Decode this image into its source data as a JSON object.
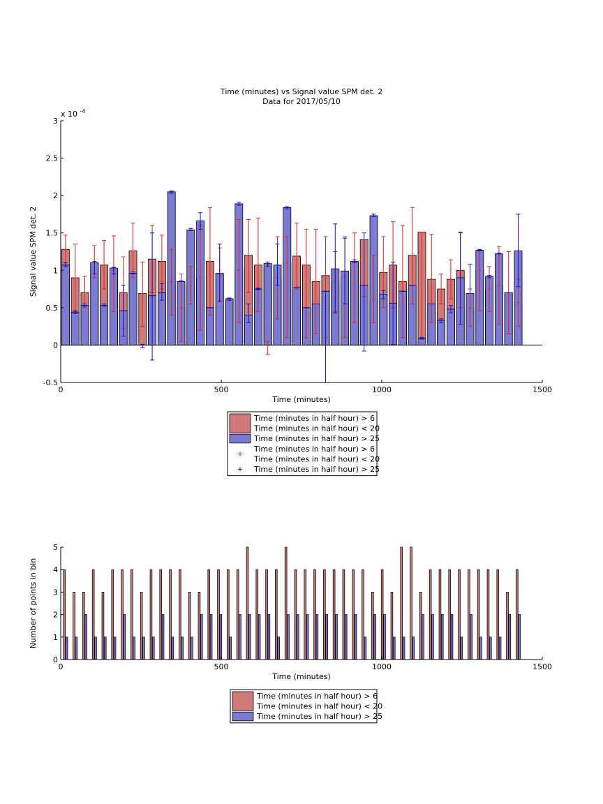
{
  "figure": {
    "title_lines": [
      "Time (minutes) vs Signal value SPM det. 2",
      "Data for 2017/05/10"
    ]
  },
  "chart_data": [
    {
      "type": "bar",
      "xlabel": "Time (minutes)",
      "ylabel": "Signal value SPM det. 2",
      "y_exponent_label": "x 10",
      "y_exponent": "-4",
      "xlim": [
        0,
        1500
      ],
      "ylim": [
        -0.5,
        3
      ],
      "xticks": [
        "0",
        "500",
        "1000",
        "1500"
      ],
      "yticks": [
        "-0.5",
        "0",
        "0.5",
        "1",
        "1.5",
        "2",
        "2.5",
        "3"
      ],
      "grid": false,
      "legend_position": "below",
      "colors": {
        "red_bar": "#d07a7a",
        "blue_bar": "#7b7bd3",
        "red_err": "#e02020",
        "blue_err": "#1010d0"
      },
      "series": [
        {
          "name": "Time (minutes in half hour) > 6\nTime (minutes in half hour) < 20",
          "color": "#d07a7a",
          "x": [
            15,
            45,
            75,
            105,
            135,
            165,
            195,
            225,
            255,
            285,
            315,
            345,
            375,
            405,
            435,
            465,
            495,
            525,
            555,
            585,
            615,
            645,
            675,
            705,
            735,
            765,
            795,
            825,
            855,
            885,
            915,
            945,
            975,
            1005,
            1035,
            1065,
            1095,
            1125,
            1155,
            1185,
            1215,
            1245,
            1275,
            1305,
            1335,
            1365,
            1395,
            1425
          ],
          "values": [
            1.28,
            0.9,
            0.7,
            1.1,
            1.07,
            1.0,
            0.7,
            1.26,
            0.69,
            1.15,
            1.12,
            0.85,
            0.5,
            0.8,
            0.9,
            1.12,
            0.95,
            0.6,
            1.0,
            1.2,
            1.07,
            1.07,
            0.9,
            1.1,
            1.19,
            1.07,
            0.85,
            0.93,
            0.85,
            0.92,
            1.1,
            1.41,
            0.6,
            0.97,
            1.07,
            0.85,
            1.2,
            1.51,
            0.88,
            0.75,
            0.88,
            1.0,
            0.5,
            1.0,
            0.75,
            0.8,
            0.7,
            0.57
          ],
          "err_low": [
            1.1,
            0.45,
            0.5,
            0.9,
            0.75,
            0.45,
            0.22,
            0.9,
            0.25,
            0.7,
            0.75,
            0.4,
            0.05,
            0.55,
            0.2,
            0.4,
            0.6,
            0.6,
            0.3,
            0.7,
            0.45,
            -0.12,
            0.35,
            0.1,
            0.75,
            0.1,
            0.15,
            0.1,
            0.45,
            0.1,
            0.3,
            0.65,
            0.3,
            0.5,
            0.5,
            0.1,
            0.55,
            0.1,
            0.3,
            0.55,
            0.62,
            0.5,
            0.25,
            0.46,
            0.45,
            0.28,
            0.15,
            0.25
          ],
          "err_high": [
            1.47,
            1.35,
            0.92,
            1.33,
            1.4,
            1.46,
            1.18,
            1.63,
            1.11,
            1.6,
            1.47,
            1.28,
            0.95,
            1.05,
            1.6,
            1.84,
            1.3,
            0.6,
            1.68,
            1.68,
            1.7,
            0.05,
            1.45,
            1.45,
            1.63,
            1.55,
            1.55,
            1.45,
            1.25,
            1.45,
            1.5,
            1.41,
            1.2,
            1.45,
            1.65,
            1.6,
            1.84,
            1.51,
            1.48,
            0.95,
            1.14,
            1.5,
            0.75,
            1.26,
            1.05,
            1.32,
            1.25,
            0.88
          ]
        },
        {
          "name": "Time (minutes in half hour) > 25",
          "color": "#7b7bd3",
          "x": [
            15,
            45,
            75,
            105,
            135,
            165,
            195,
            225,
            255,
            285,
            315,
            345,
            375,
            405,
            435,
            465,
            495,
            525,
            555,
            585,
            615,
            645,
            675,
            705,
            735,
            765,
            795,
            825,
            855,
            885,
            915,
            945,
            975,
            1005,
            1035,
            1065,
            1095,
            1125,
            1155,
            1185,
            1215,
            1245,
            1275,
            1305,
            1335,
            1365,
            1395,
            1425
          ],
          "values": [
            1.07,
            0.44,
            0.53,
            1.1,
            0.53,
            1.03,
            0.46,
            0.96,
            0.0,
            0.66,
            0.7,
            2.05,
            0.85,
            1.54,
            1.66,
            0.5,
            0.96,
            0.62,
            1.89,
            0.4,
            0.75,
            1.09,
            1.07,
            1.84,
            0.77,
            0.5,
            0.55,
            0.72,
            1.02,
            0.99,
            1.12,
            0.8,
            1.73,
            0.68,
            0.56,
            0.72,
            0.8,
            0.09,
            0.55,
            0.33,
            0.48,
            0.9,
            0.69,
            1.27,
            0.92,
            1.22,
            0.7,
            1.26
          ],
          "err_low": [
            1.05,
            0.42,
            0.52,
            0.95,
            0.52,
            0.95,
            0.12,
            0.95,
            -0.03,
            -0.2,
            0.6,
            2.03,
            0.85,
            1.53,
            1.55,
            0.5,
            0.58,
            0.6,
            1.87,
            0.3,
            0.74,
            1.05,
            0.8,
            1.82,
            0.77,
            0.5,
            0.55,
            -0.5,
            0.43,
            0.55,
            1.1,
            -0.08,
            1.72,
            0.62,
            0.01,
            0.72,
            0.8,
            0.08,
            0.55,
            0.3,
            0.43,
            0.28,
            0.69,
            1.26,
            0.9,
            1.22,
            0.7,
            0.78
          ],
          "err_high": [
            1.1,
            0.46,
            0.55,
            1.12,
            0.55,
            1.04,
            0.8,
            0.98,
            0.01,
            1.5,
            0.82,
            2.06,
            0.86,
            1.56,
            1.77,
            0.5,
            1.35,
            0.63,
            1.91,
            0.55,
            0.76,
            1.11,
            1.35,
            1.85,
            0.77,
            0.5,
            0.55,
            0.72,
            1.62,
            1.43,
            1.14,
            1.5,
            1.75,
            0.73,
            1.11,
            0.72,
            0.8,
            0.1,
            0.55,
            0.35,
            0.53,
            1.51,
            1.08,
            1.28,
            0.93,
            1.23,
            0.7,
            1.75
          ]
        }
      ],
      "legend_entries": [
        {
          "kind": "bar",
          "color": "#d07a7a",
          "lines": [
            "Time (minutes in half hour) > 6",
            "Time (minutes in half hour) < 20"
          ]
        },
        {
          "kind": "bar",
          "color": "#7b7bd3",
          "lines": [
            "Time (minutes in half hour) > 25"
          ]
        },
        {
          "kind": "marker",
          "color": "#e02020",
          "lines": [
            "Time (minutes in half hour) > 6",
            "Time (minutes in half hour) < 20"
          ]
        },
        {
          "kind": "marker",
          "color": "#1010d0",
          "lines": [
            "Time (minutes in half hour) > 25"
          ]
        }
      ]
    },
    {
      "type": "bar",
      "xlabel": "Time (minutes)",
      "ylabel": "Number of points in bin",
      "xlim": [
        0,
        1500
      ],
      "ylim": [
        0,
        5
      ],
      "xticks": [
        "0",
        "500",
        "1000",
        "1500"
      ],
      "yticks": [
        "0",
        "1",
        "2",
        "3",
        "4",
        "5"
      ],
      "grid": false,
      "legend_position": "below",
      "series": [
        {
          "name": "Time (minutes in half hour) > 6\nTime (minutes in half hour) < 20",
          "color": "#d07a7a",
          "x": [
            15,
            45,
            75,
            105,
            135,
            165,
            195,
            225,
            255,
            285,
            315,
            345,
            375,
            405,
            435,
            465,
            495,
            525,
            555,
            585,
            615,
            645,
            675,
            705,
            735,
            765,
            795,
            825,
            855,
            885,
            915,
            945,
            975,
            1005,
            1035,
            1065,
            1095,
            1125,
            1155,
            1185,
            1215,
            1245,
            1275,
            1305,
            1335,
            1365,
            1395,
            1425
          ],
          "values": [
            4,
            3,
            3,
            4,
            3,
            4,
            4,
            4,
            3,
            4,
            4,
            4,
            4,
            3,
            3,
            4,
            4,
            4,
            4,
            5,
            4,
            4,
            4,
            5,
            4,
            4,
            4,
            4,
            4,
            4,
            4,
            4,
            3,
            4,
            3,
            5,
            5,
            3,
            4,
            4,
            4,
            4,
            4,
            4,
            4,
            4,
            3,
            4
          ]
        },
        {
          "name": "Time (minutes in half hour) > 25",
          "color": "#7b7bd3",
          "x": [
            15,
            45,
            75,
            105,
            135,
            165,
            195,
            225,
            255,
            285,
            315,
            345,
            375,
            405,
            435,
            465,
            495,
            525,
            555,
            585,
            615,
            645,
            675,
            705,
            735,
            765,
            795,
            825,
            855,
            885,
            915,
            945,
            975,
            1005,
            1035,
            1065,
            1095,
            1125,
            1155,
            1185,
            1215,
            1245,
            1275,
            1305,
            1335,
            1365,
            1395,
            1425
          ],
          "values": [
            1,
            1,
            2,
            1,
            1,
            1,
            2,
            1,
            1,
            1,
            2,
            1,
            1,
            1,
            2,
            2,
            2,
            1,
            2,
            2,
            2,
            2,
            1,
            2,
            2,
            2,
            2,
            2,
            2,
            2,
            2,
            1,
            2,
            2,
            1,
            1,
            1,
            2,
            2,
            2,
            2,
            1,
            2,
            1,
            1,
            1,
            2,
            2
          ]
        }
      ],
      "legend_entries": [
        {
          "kind": "bar",
          "color": "#d07a7a",
          "lines": [
            "Time (minutes in half hour) > 6",
            "Time (minutes in half hour) < 20"
          ]
        },
        {
          "kind": "bar",
          "color": "#7b7bd3",
          "lines": [
            "Time (minutes in half hour) > 25"
          ]
        }
      ]
    }
  ]
}
